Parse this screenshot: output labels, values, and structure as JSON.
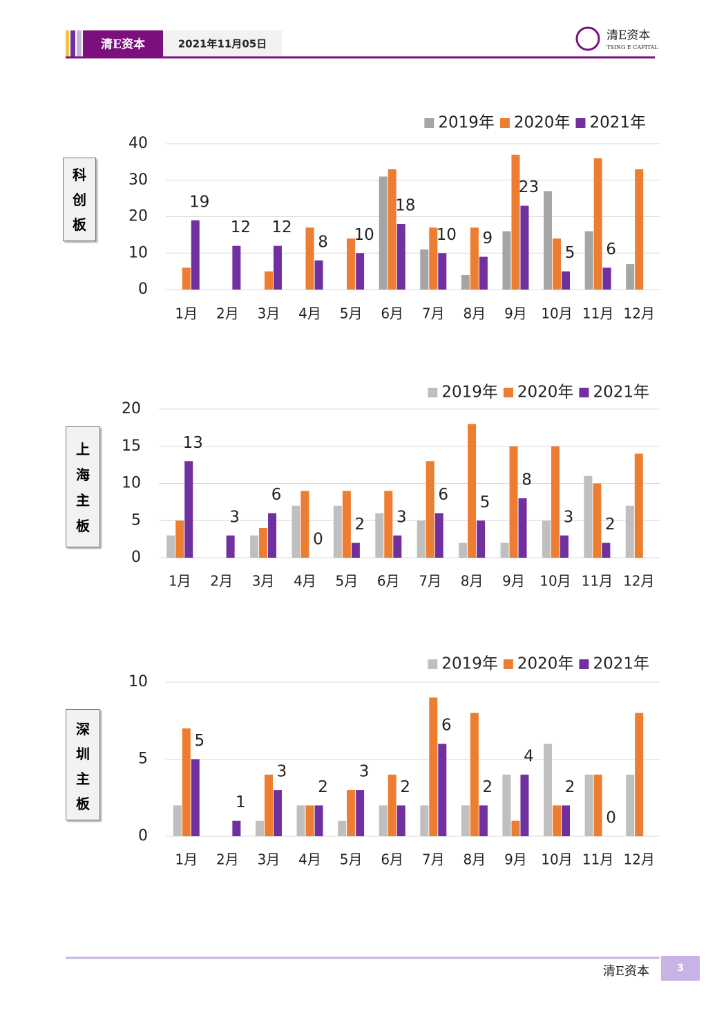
{
  "header": {
    "company": "清E资本",
    "date": "2021年11月05日",
    "logo_text": "TSING E CAPITAL"
  },
  "footer": {
    "company": "清E资本",
    "page": "3"
  },
  "chart_data": [
    {
      "type": "bar",
      "title": "科创板",
      "categories": [
        "1月",
        "2月",
        "3月",
        "4月",
        "5月",
        "6月",
        "7月",
        "8月",
        "9月",
        "10月",
        "11月",
        "12月"
      ],
      "series": [
        {
          "name": "2019年",
          "color": "#a5a5a5",
          "values": [
            null,
            null,
            null,
            null,
            null,
            31,
            11,
            4,
            16,
            27,
            16,
            7
          ]
        },
        {
          "name": "2020年",
          "color": "#ed7d31",
          "values": [
            6,
            0,
            5,
            17,
            14,
            33,
            17,
            17,
            37,
            14,
            36,
            33
          ]
        },
        {
          "name": "2021年",
          "color": "#7030a0",
          "values": [
            19,
            12,
            12,
            8,
            10,
            18,
            10,
            9,
            23,
            5,
            6,
            null
          ],
          "data_labels": true
        }
      ],
      "ylim": [
        0,
        40
      ],
      "yticks": [
        0,
        10,
        20,
        30,
        40
      ],
      "grid": true,
      "legend": "top-right"
    },
    {
      "type": "bar",
      "title": "上海主板",
      "categories": [
        "1月",
        "2月",
        "3月",
        "4月",
        "5月",
        "6月",
        "7月",
        "8月",
        "9月",
        "10月",
        "11月",
        "12月"
      ],
      "series": [
        {
          "name": "2019年",
          "color": "#bfbfbf",
          "values": [
            3,
            0,
            3,
            7,
            7,
            6,
            5,
            2,
            2,
            5,
            11,
            7
          ]
        },
        {
          "name": "2020年",
          "color": "#ed7d31",
          "values": [
            5,
            0,
            4,
            9,
            9,
            9,
            13,
            18,
            15,
            15,
            10,
            14
          ]
        },
        {
          "name": "2021年",
          "color": "#7030a0",
          "values": [
            13,
            3,
            6,
            0,
            2,
            3,
            6,
            5,
            8,
            3,
            2,
            null
          ],
          "data_labels": true
        }
      ],
      "ylim": [
        0,
        20
      ],
      "yticks": [
        0,
        5,
        10,
        15,
        20
      ],
      "grid": true,
      "legend": "top-right"
    },
    {
      "type": "bar",
      "title": "深圳主板",
      "categories": [
        "1月",
        "2月",
        "3月",
        "4月",
        "5月",
        "6月",
        "7月",
        "8月",
        "9月",
        "10月",
        "11月",
        "12月"
      ],
      "series": [
        {
          "name": "2019年",
          "color": "#bfbfbf",
          "values": [
            2,
            0,
            1,
            2,
            1,
            2,
            2,
            2,
            4,
            6,
            4,
            4
          ]
        },
        {
          "name": "2020年",
          "color": "#ed7d31",
          "values": [
            7,
            0,
            4,
            2,
            3,
            4,
            9,
            8,
            1,
            2,
            4,
            8
          ]
        },
        {
          "name": "2021年",
          "color": "#7030a0",
          "values": [
            5,
            1,
            3,
            2,
            3,
            2,
            6,
            2,
            4,
            2,
            0,
            null
          ],
          "data_labels": true
        }
      ],
      "ylim": [
        0,
        10
      ],
      "yticks": [
        0,
        5,
        10
      ],
      "grid": true,
      "legend": "top-right"
    }
  ]
}
